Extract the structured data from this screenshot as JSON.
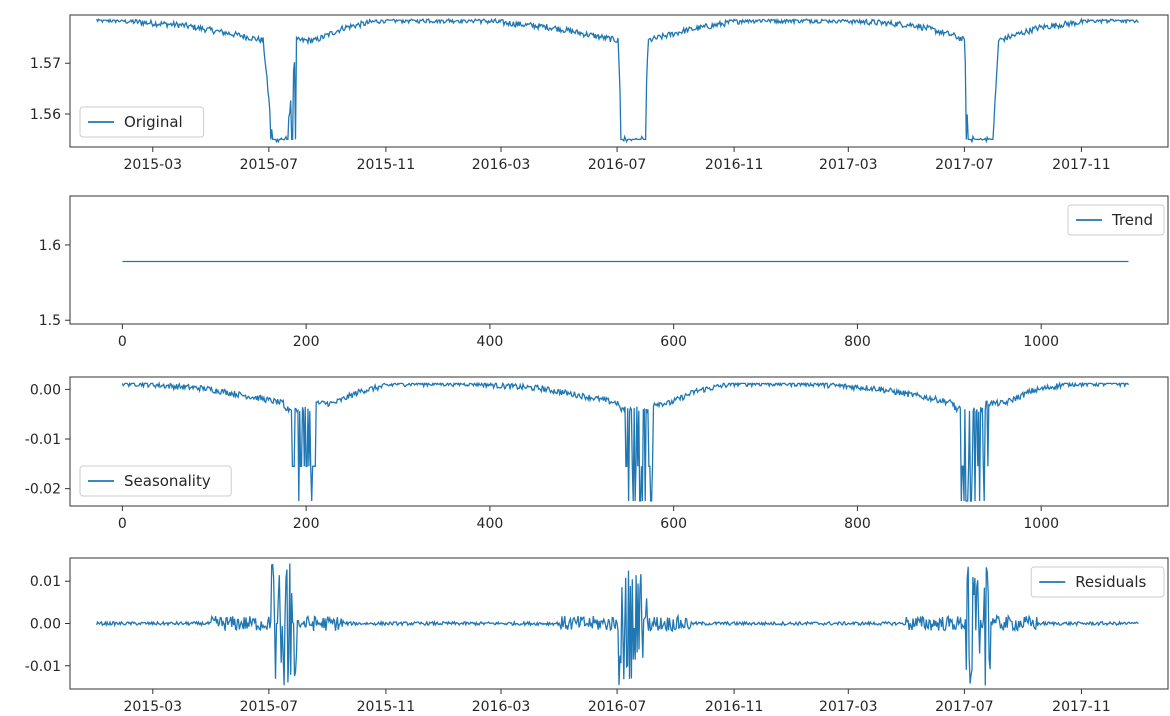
{
  "colors": {
    "line": "#1f77b4",
    "axis": "#333333",
    "legend_border": "#cccccc",
    "background": "#ffffff"
  },
  "chart_data": [
    {
      "type": "line",
      "panel": "original",
      "x_kind": "date",
      "x_range": [
        "2014-12-04",
        "2018-01-31"
      ],
      "ylim": [
        1.5535,
        1.5795
      ],
      "ylim_note": "y axis values",
      "xticks": [
        "2015-03",
        "2015-07",
        "2015-11",
        "2016-03",
        "2016-07",
        "2016-11",
        "2017-03",
        "2017-07",
        "2017-11"
      ],
      "yticks": [
        {
          "value": 1.56,
          "label": "1.56"
        },
        {
          "value": 1.57,
          "label": "1.57"
        }
      ],
      "legend": {
        "position": "lower left",
        "entries": [
          "Original"
        ]
      },
      "series": [
        {
          "name": "Original",
          "baseline": 1.5785,
          "x_start": "2015-01-01",
          "x_end": "2017-12-31",
          "days": 1095,
          "shape_points": [
            {
              "day": 0,
              "y": 1.5785
            },
            {
              "day": 20,
              "y": 1.5785
            },
            {
              "day": 50,
              "y": 1.578
            },
            {
              "day": 90,
              "y": 1.5775
            },
            {
              "day": 120,
              "y": 1.5765
            },
            {
              "day": 150,
              "y": 1.5755
            },
            {
              "day": 175,
              "y": 1.5745
            },
            {
              "day": 185,
              "y": 1.555
            },
            {
              "day": 200,
              "y": 1.555
            },
            {
              "day": 210,
              "y": 1.5745
            },
            {
              "day": 230,
              "y": 1.5745
            },
            {
              "day": 260,
              "y": 1.577
            },
            {
              "day": 300,
              "y": 1.5785
            },
            {
              "day": 400,
              "y": 1.5785
            },
            {
              "day": 480,
              "y": 1.577
            },
            {
              "day": 520,
              "y": 1.5755
            },
            {
              "day": 548,
              "y": 1.5745
            },
            {
              "day": 552,
              "y": 1.555
            },
            {
              "day": 575,
              "y": 1.555
            },
            {
              "day": 580,
              "y": 1.5745
            },
            {
              "day": 620,
              "y": 1.5765
            },
            {
              "day": 680,
              "y": 1.5785
            },
            {
              "day": 780,
              "y": 1.5785
            },
            {
              "day": 860,
              "y": 1.5775
            },
            {
              "day": 900,
              "y": 1.5755
            },
            {
              "day": 912,
              "y": 1.5745
            },
            {
              "day": 916,
              "y": 1.555
            },
            {
              "day": 942,
              "y": 1.555
            },
            {
              "day": 948,
              "y": 1.5745
            },
            {
              "day": 990,
              "y": 1.577
            },
            {
              "day": 1050,
              "y": 1.5785
            },
            {
              "day": 1095,
              "y": 1.5785
            }
          ],
          "spike_windows": [
            [
              183,
              210,
              1.555
            ],
            [
              548,
              578,
              1.555
            ],
            [
              913,
              943,
              1.555
            ]
          ]
        }
      ]
    },
    {
      "type": "line",
      "panel": "trend",
      "x_kind": "index",
      "xlim": [
        -57,
        1138
      ],
      "ylim": [
        1.495,
        1.665
      ],
      "xticks": [
        0,
        200,
        400,
        600,
        800,
        1000
      ],
      "yticks": [
        {
          "value": 1.5,
          "label": "1.5"
        },
        {
          "value": 1.6,
          "label": "1.6"
        }
      ],
      "legend": {
        "position": "upper right",
        "entries": [
          "Trend"
        ]
      },
      "series": [
        {
          "name": "Trend",
          "x": [
            0,
            1095
          ],
          "y": [
            1.578,
            1.578
          ]
        }
      ]
    },
    {
      "type": "line",
      "panel": "seasonality",
      "x_kind": "index",
      "xlim": [
        -57,
        1138
      ],
      "ylim": [
        -0.0235,
        0.0025
      ],
      "xticks": [
        0,
        200,
        400,
        600,
        800,
        1000
      ],
      "yticks": [
        {
          "value": 0.0,
          "label": "0.00"
        },
        {
          "value": -0.01,
          "label": "-0.01"
        },
        {
          "value": -0.02,
          "label": "-0.02"
        }
      ],
      "legend": {
        "position": "lower left",
        "entries": [
          "Seasonality"
        ]
      },
      "series": [
        {
          "name": "Seasonality",
          "period": 365,
          "days": 1095,
          "min": -0.0225,
          "max": 0.0012,
          "dips": [
            [
              183,
              210
            ],
            [
              548,
              578
            ],
            [
              913,
              943
            ]
          ]
        }
      ]
    },
    {
      "type": "line",
      "panel": "residuals",
      "x_kind": "date",
      "x_range": [
        "2014-12-04",
        "2018-01-31"
      ],
      "ylim": [
        -0.0155,
        0.0155
      ],
      "xticks": [
        "2015-03",
        "2015-07",
        "2015-11",
        "2016-03",
        "2016-07",
        "2016-11",
        "2017-03",
        "2017-07",
        "2017-11"
      ],
      "yticks": [
        {
          "value": 0.01,
          "label": "0.01"
        },
        {
          "value": 0.0,
          "label": "0.00"
        },
        {
          "value": -0.01,
          "label": "-0.01"
        }
      ],
      "legend": {
        "position": "upper right",
        "entries": [
          "Residuals"
        ]
      },
      "series": [
        {
          "name": "Residuals",
          "x_start": "2015-01-01",
          "days": 1095,
          "max": 0.0148,
          "min": -0.0148,
          "bursts": [
            [
              183,
              210
            ],
            [
              548,
              578
            ],
            [
              913,
              943
            ]
          ]
        }
      ]
    }
  ]
}
